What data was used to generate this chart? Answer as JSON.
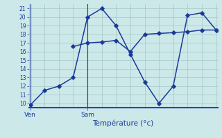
{
  "bg_color": "#cce8e8",
  "grid_color": "#aacccc",
  "line_color": "#1a3a9a",
  "axis_color": "#2244bb",
  "ylim": [
    9.5,
    21.5
  ],
  "yticks": [
    10,
    11,
    12,
    13,
    14,
    15,
    16,
    17,
    18,
    19,
    20,
    21
  ],
  "line1_x": [
    0,
    1,
    2,
    3,
    4,
    5,
    6,
    7,
    8,
    9,
    10,
    11,
    12,
    13
  ],
  "line1_y": [
    9.8,
    11.5,
    12.0,
    13.0,
    20.0,
    21.0,
    19.0,
    15.7,
    12.5,
    10.0,
    12.0,
    20.2,
    20.5,
    18.5
  ],
  "line2_x": [
    3,
    4,
    5,
    6,
    7,
    8,
    9,
    10,
    11,
    12,
    13
  ],
  "line2_y": [
    16.6,
    17.0,
    17.1,
    17.3,
    16.0,
    18.0,
    18.1,
    18.2,
    18.3,
    18.5,
    18.5
  ],
  "ven_x": 0,
  "sam_x": 4,
  "xtick_positions": [
    0,
    4
  ],
  "xtick_labels": [
    "Ven",
    "Sam"
  ],
  "xlabel": "Température (°c)",
  "xlim": [
    -0.1,
    13.1
  ]
}
